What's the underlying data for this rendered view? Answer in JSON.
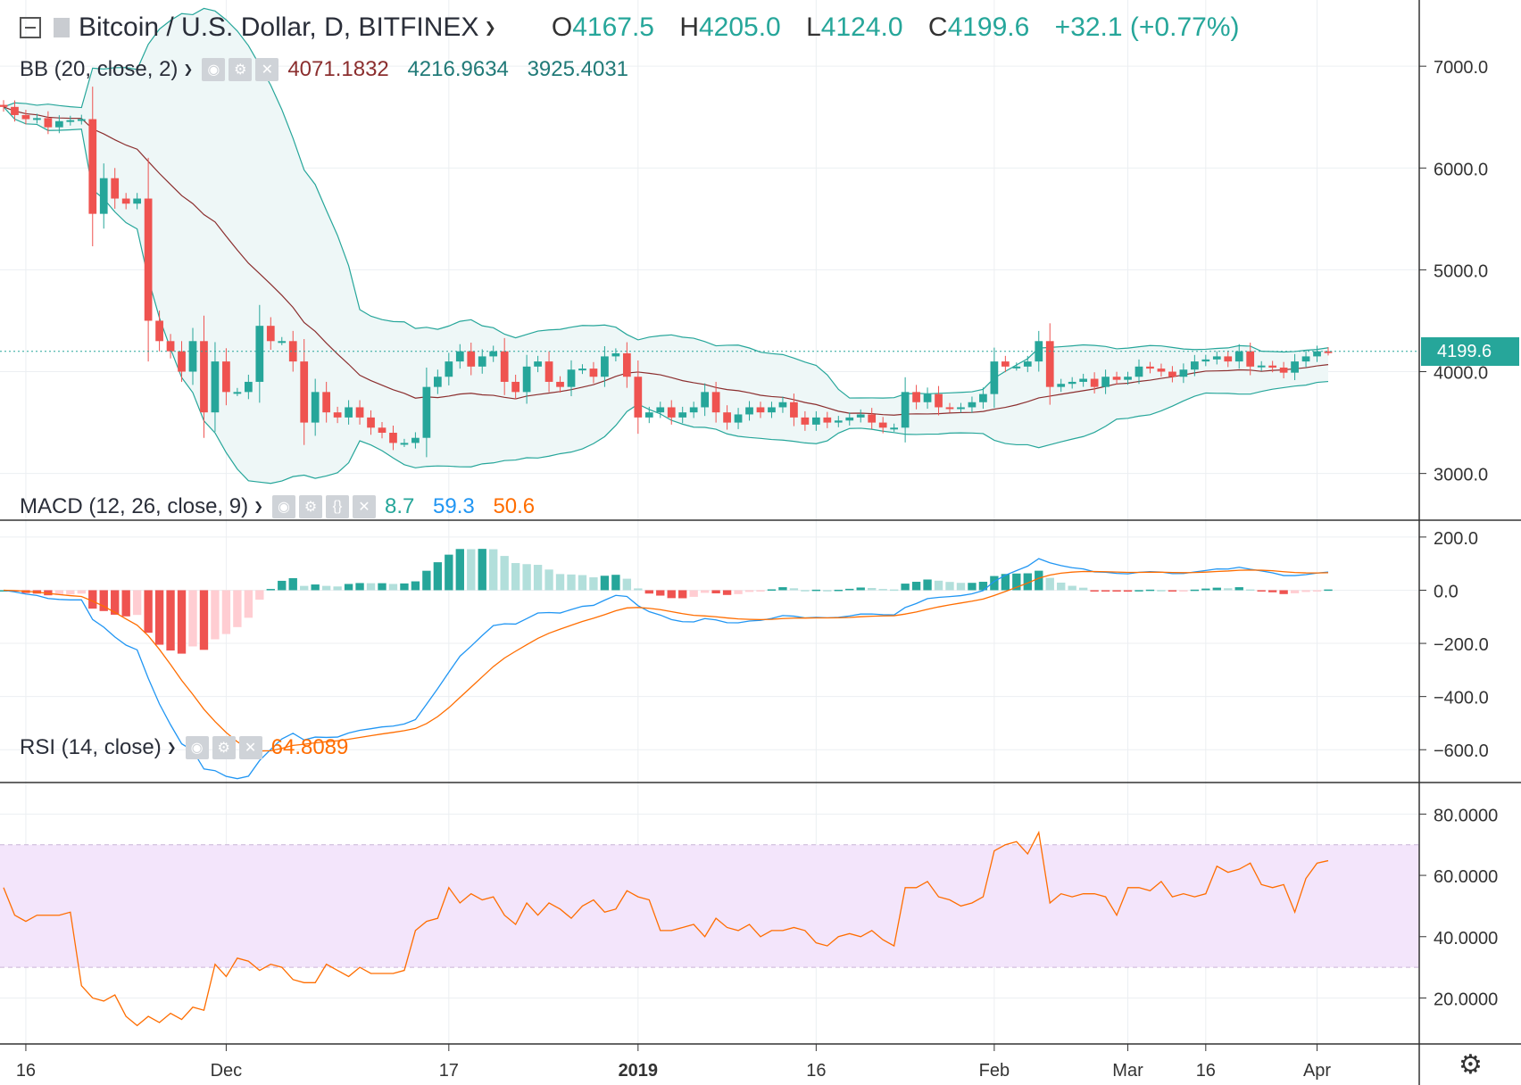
{
  "header": {
    "symbol_title": "Bitcoin / U.S. Dollar, D, BITFINEX",
    "ohlc": {
      "o_label": "O",
      "o": "4167.5",
      "h_label": "H",
      "h": "4205.0",
      "l_label": "L",
      "l": "4124.0",
      "c_label": "C",
      "c": "4199.6",
      "change": "+32.1 (+0.77%)"
    }
  },
  "indicators": {
    "bb": {
      "label": "BB (20, close, 2)",
      "values": [
        "4071.1832",
        "4216.9634",
        "3925.4031"
      ],
      "colors": [
        "#8b2e2e",
        "#217a78",
        "#217a78"
      ]
    },
    "macd": {
      "label": "MACD (12, 26, close, 9)",
      "values": [
        "8.7",
        "59.3",
        "50.6"
      ],
      "colors": [
        "#26a69a",
        "#2196f3",
        "#ff6d00"
      ]
    },
    "rsi": {
      "label": "RSI (14, close)",
      "values": [
        "64.8089"
      ],
      "colors": [
        "#ff6d00"
      ]
    }
  },
  "price_tag": "4199.6",
  "colors": {
    "up": "#26a69a",
    "down": "#ef5350",
    "bb_line": "#26a69a",
    "bb_basis": "#8b2e2e",
    "bb_fill": "#eef7f7",
    "macd": "#2196f3",
    "signal": "#ff6d00",
    "rsi": "#ff6d00",
    "rsi_band": "#f3e5fb",
    "grid": "#eceff2",
    "axis_text": "#333333"
  },
  "chart_data": [
    {
      "type": "candlestick",
      "title": "Bitcoin / U.S. Dollar, D, BITFINEX",
      "ylim": [
        2550,
        7650
      ],
      "y_ticks": [
        3000,
        4000,
        5000,
        6000,
        7000
      ],
      "y_tick_labels": [
        "3000.0",
        "4000.0",
        "5000.0",
        "6000.0",
        "7000.0"
      ],
      "x_ticks": [
        "16",
        "Dec",
        "17",
        "2019",
        "16",
        "Feb",
        "Mar",
        "16",
        "Apr"
      ],
      "last_price": 4199.6,
      "closes": [
        6600,
        6520,
        6480,
        6490,
        6400,
        6460,
        6470,
        6480,
        5550,
        5900,
        5700,
        5650,
        5700,
        4500,
        4300,
        4200,
        4000,
        4300,
        3600,
        4100,
        3800,
        3800,
        3900,
        4450,
        4300,
        4300,
        4100,
        3500,
        3800,
        3600,
        3550,
        3650,
        3550,
        3450,
        3400,
        3300,
        3300,
        3350,
        3850,
        3950,
        4100,
        4200,
        4050,
        4150,
        4200,
        3900,
        3800,
        4050,
        4100,
        3900,
        3850,
        4020,
        4030,
        3950,
        4150,
        4180,
        3950,
        3550,
        3600,
        3650,
        3550,
        3600,
        3650,
        3800,
        3600,
        3500,
        3580,
        3650,
        3600,
        3650,
        3700,
        3550,
        3480,
        3550,
        3500,
        3520,
        3550,
        3580,
        3500,
        3450,
        3450,
        3800,
        3700,
        3780,
        3650,
        3640,
        3650,
        3700,
        3780,
        4100,
        4050,
        4050,
        4100,
        4300,
        3850,
        3880,
        3900,
        3930,
        3850,
        3950,
        3920,
        3950,
        4050,
        4030,
        4000,
        3950,
        4020,
        4100,
        4120,
        4150,
        4100,
        4200,
        4050,
        4060,
        4040,
        3990,
        4100,
        4150,
        4200,
        4199.6
      ]
    },
    {
      "type": "macd",
      "ylim": [
        -720,
        260
      ],
      "y_ticks": [
        -600,
        -400,
        -200,
        0,
        200
      ],
      "y_tick_labels": [
        "−600.0",
        "−400.0",
        "−200.0",
        "0.0",
        "200.0"
      ],
      "series": [
        {
          "name": "MACD",
          "value": 59.3
        },
        {
          "name": "Signal",
          "value": 50.6
        },
        {
          "name": "Histogram",
          "value": 8.7
        }
      ]
    },
    {
      "type": "line",
      "ylim": [
        5,
        90
      ],
      "y_ticks": [
        20,
        40,
        60,
        80
      ],
      "y_tick_labels": [
        "20.0000",
        "40.0000",
        "60.0000",
        "80.0000"
      ],
      "band": [
        30,
        70
      ],
      "series": [
        {
          "name": "RSI",
          "values": [
            56,
            47,
            45,
            47,
            47,
            47,
            48,
            24,
            20,
            19,
            21,
            14,
            11,
            14,
            12,
            15,
            13,
            17,
            16,
            31,
            27,
            33,
            32,
            29,
            31,
            30,
            26,
            25,
            25,
            31,
            29,
            27,
            30,
            28,
            28,
            28,
            29,
            42,
            45,
            46,
            56,
            51,
            54,
            52,
            53,
            47,
            44,
            51,
            47,
            51,
            49,
            46,
            50,
            52,
            48,
            49,
            55,
            53,
            52,
            42,
            42,
            43,
            44,
            40,
            46,
            43,
            42,
            44,
            40,
            42,
            42,
            43,
            42,
            38,
            37,
            40,
            41,
            40,
            42,
            39,
            37,
            56,
            56,
            58,
            53,
            52,
            50,
            51,
            53,
            68,
            70,
            71,
            67,
            74,
            51,
            54,
            53,
            54,
            54,
            53,
            47,
            56,
            56,
            55,
            58,
            53,
            54,
            53,
            54,
            63,
            61,
            62,
            64,
            57,
            56,
            57,
            48,
            59,
            64,
            64.8
          ]
        }
      ]
    }
  ]
}
